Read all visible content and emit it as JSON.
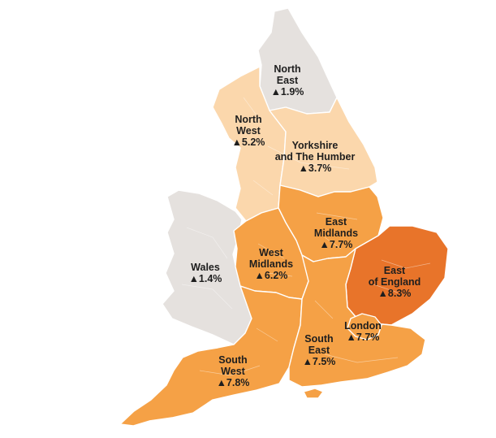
{
  "colors": {
    "background": "#ffffff",
    "border": "#ffffff",
    "label_text": "#1e1e1e"
  },
  "regions": {
    "north_east": {
      "line1": "North",
      "line2": "East",
      "value": "▲1.9%",
      "fill": "#e5e1de"
    },
    "north_west": {
      "line1": "North",
      "line2": "West",
      "value": "▲5.2%",
      "fill": "#fbd7ac"
    },
    "yorkshire": {
      "line1": "Yorkshire",
      "line2": "and The Humber",
      "value": "▲3.7%",
      "fill": "#fbd7ac"
    },
    "east_midlands": {
      "line1": "East",
      "line2": "Midlands",
      "value": "▲7.7%",
      "fill": "#f5a146"
    },
    "west_midlands": {
      "line1": "West",
      "line2": "Midlands",
      "value": "▲6.2%",
      "fill": "#f5a146"
    },
    "east_of_england": {
      "line1": "East",
      "line2": "of England",
      "value": "▲8.3%",
      "fill": "#e8742a"
    },
    "wales": {
      "line1": "Wales",
      "value": "▲1.4%",
      "fill": "#e5e1de"
    },
    "london": {
      "line1": "London",
      "value": "▲7.7%",
      "fill": "#f5a146"
    },
    "south_east": {
      "line1": "South",
      "line2": "East",
      "value": "▲7.5%",
      "fill": "#f5a146"
    },
    "south_west": {
      "line1": "South",
      "line2": "West",
      "value": "▲7.8%",
      "fill": "#f5a146"
    }
  }
}
